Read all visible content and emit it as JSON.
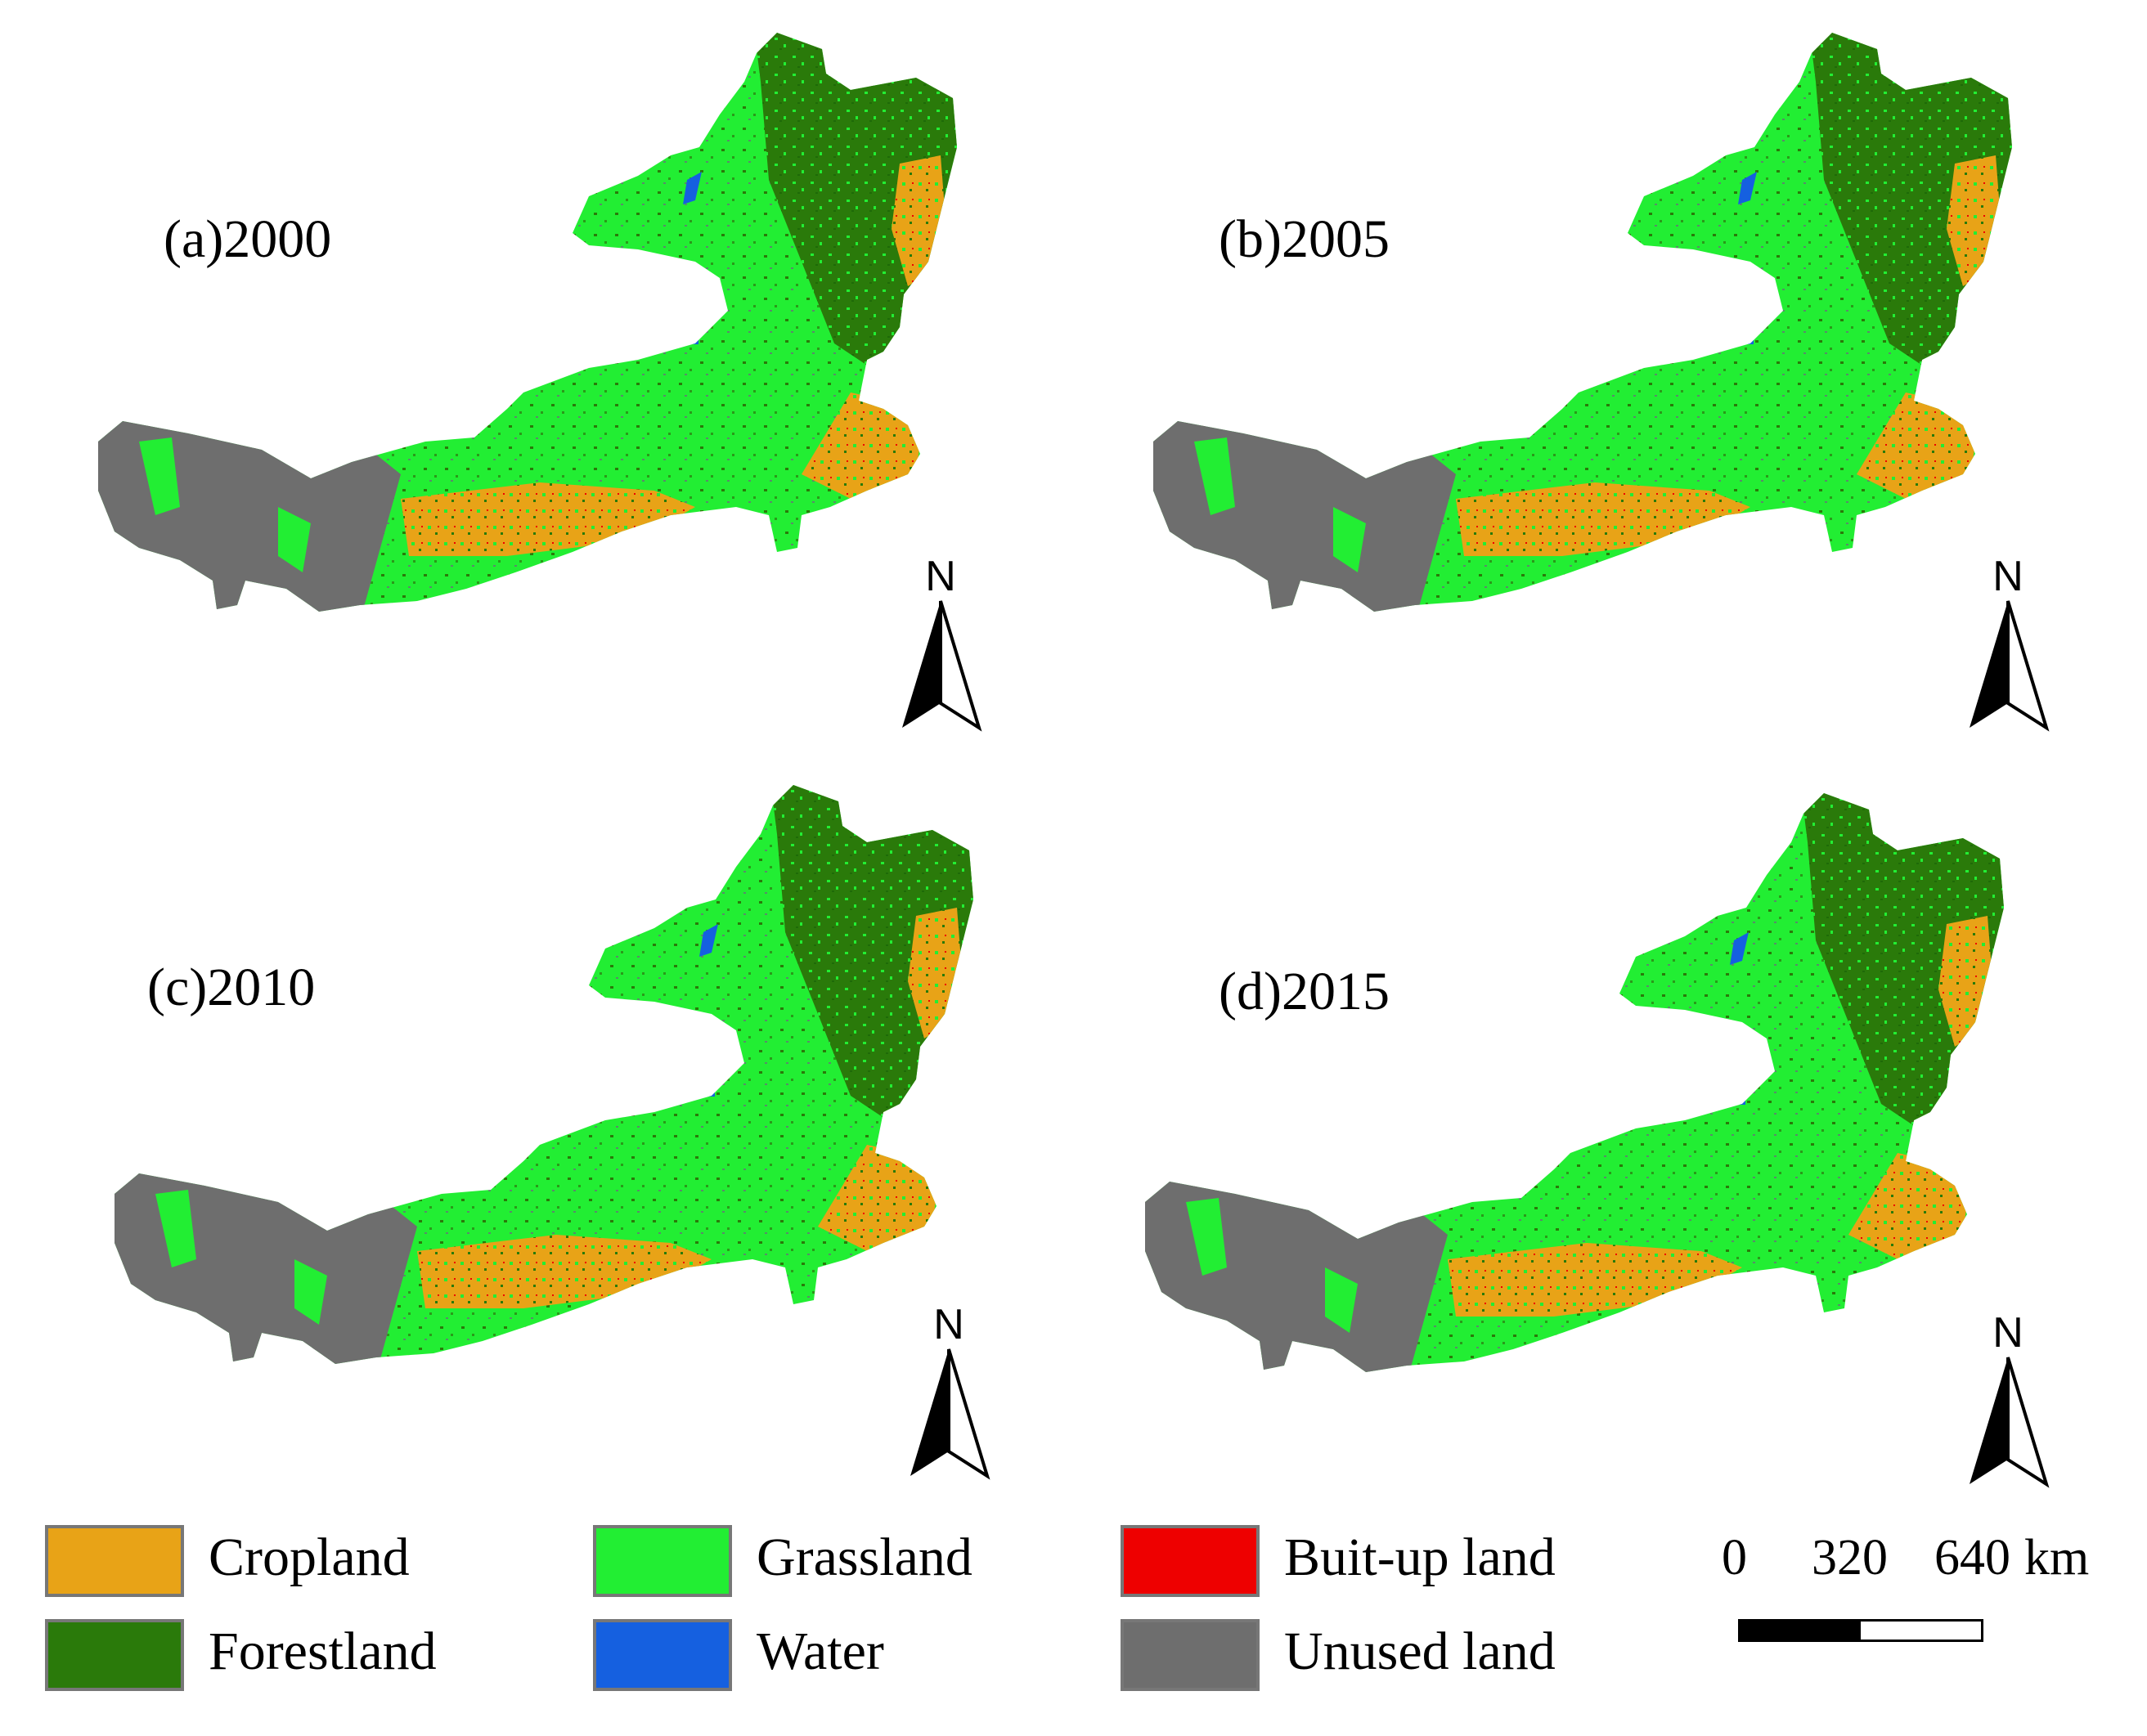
{
  "panels": [
    {
      "label": "(a)2000"
    },
    {
      "label": "(b)2005"
    },
    {
      "label": "(c)2010"
    },
    {
      "label": "(d)2015"
    }
  ],
  "north_arrow": {
    "letter": "N"
  },
  "legend": [
    {
      "label": "Cropland",
      "color": "#E8A317"
    },
    {
      "label": "Grassland",
      "color": "#22EE33"
    },
    {
      "label": "Buit-up land",
      "color": "#EE0000"
    },
    {
      "label": "Forestland",
      "color": "#2A7A0A"
    },
    {
      "label": "Water",
      "color": "#1560E0"
    },
    {
      "label": "Unused land",
      "color": "#6E6E6E"
    }
  ],
  "scale_bar": {
    "tick_0": "0",
    "tick_1": "320",
    "tick_2": "640",
    "unit": "km"
  }
}
